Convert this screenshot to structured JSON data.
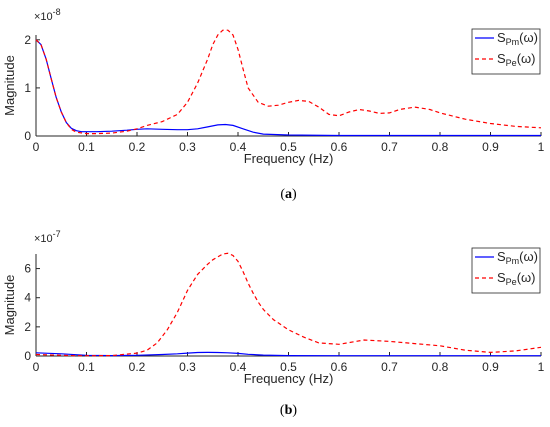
{
  "chart_data": [
    {
      "type": "line",
      "caption_letter": "a",
      "exponent": "-8",
      "xlabel": "Frequency (Hz)",
      "ylabel": "Magnitude",
      "xlim": [
        0,
        1
      ],
      "ylim": [
        0,
        2.1
      ],
      "xticks": [
        "0",
        "0.1",
        "0.2",
        "0.3",
        "0.4",
        "0.5",
        "0.6",
        "0.7",
        "0.8",
        "0.9",
        "1"
      ],
      "yticks": [
        "0",
        "1",
        "2"
      ],
      "legend_position": "top-right",
      "series": [
        {
          "name": "Pm",
          "color": "#0000ff",
          "style": "solid",
          "x": [
            0,
            0.01,
            0.02,
            0.03,
            0.04,
            0.05,
            0.06,
            0.07,
            0.08,
            0.09,
            0.1,
            0.12,
            0.15,
            0.18,
            0.2,
            0.22,
            0.25,
            0.28,
            0.3,
            0.32,
            0.34,
            0.36,
            0.375,
            0.39,
            0.41,
            0.43,
            0.45,
            0.5,
            0.6,
            0.7,
            0.8,
            0.9,
            1.0
          ],
          "y": [
            2.0,
            1.9,
            1.6,
            1.2,
            0.8,
            0.5,
            0.28,
            0.16,
            0.11,
            0.09,
            0.09,
            0.09,
            0.1,
            0.12,
            0.14,
            0.15,
            0.14,
            0.13,
            0.13,
            0.15,
            0.19,
            0.23,
            0.24,
            0.22,
            0.15,
            0.08,
            0.04,
            0.02,
            0.01,
            0.01,
            0.01,
            0.01,
            0.01
          ]
        },
        {
          "name": "Pe",
          "color": "#ff0000",
          "style": "dashed",
          "x": [
            0,
            0.01,
            0.02,
            0.03,
            0.04,
            0.05,
            0.06,
            0.07,
            0.08,
            0.1,
            0.12,
            0.15,
            0.18,
            0.2,
            0.22,
            0.25,
            0.28,
            0.3,
            0.32,
            0.34,
            0.35,
            0.36,
            0.37,
            0.38,
            0.39,
            0.4,
            0.41,
            0.42,
            0.44,
            0.46,
            0.48,
            0.5,
            0.52,
            0.54,
            0.56,
            0.58,
            0.6,
            0.62,
            0.64,
            0.66,
            0.68,
            0.7,
            0.72,
            0.75,
            0.78,
            0.8,
            0.85,
            0.9,
            0.95,
            1.0
          ],
          "y": [
            2.0,
            1.9,
            1.6,
            1.2,
            0.8,
            0.5,
            0.28,
            0.14,
            0.08,
            0.05,
            0.05,
            0.06,
            0.1,
            0.15,
            0.22,
            0.3,
            0.45,
            0.7,
            1.1,
            1.6,
            1.9,
            2.1,
            2.2,
            2.2,
            2.1,
            1.8,
            1.4,
            1.0,
            0.7,
            0.62,
            0.64,
            0.7,
            0.74,
            0.72,
            0.6,
            0.45,
            0.42,
            0.5,
            0.55,
            0.52,
            0.47,
            0.48,
            0.55,
            0.6,
            0.55,
            0.48,
            0.35,
            0.26,
            0.2,
            0.17
          ]
        }
      ]
    },
    {
      "type": "line",
      "caption_letter": "b",
      "exponent": "-7",
      "xlabel": "Frequency (Hz)",
      "ylabel": "Magnitude",
      "xlim": [
        0,
        1
      ],
      "ylim": [
        0,
        7
      ],
      "xticks": [
        "0",
        "0.1",
        "0.2",
        "0.3",
        "0.4",
        "0.5",
        "0.6",
        "0.7",
        "0.8",
        "0.9",
        "1"
      ],
      "yticks": [
        "0",
        "2",
        "4",
        "6"
      ],
      "legend_position": "top-right",
      "series": [
        {
          "name": "Pm",
          "color": "#0000ff",
          "style": "solid",
          "x": [
            0,
            0.05,
            0.1,
            0.15,
            0.2,
            0.25,
            0.28,
            0.3,
            0.32,
            0.34,
            0.36,
            0.38,
            0.4,
            0.42,
            0.45,
            0.5,
            0.6,
            0.7,
            0.8,
            0.9,
            1.0
          ],
          "y": [
            0.22,
            0.15,
            0.05,
            0.03,
            0.05,
            0.1,
            0.15,
            0.2,
            0.24,
            0.25,
            0.24,
            0.22,
            0.18,
            0.12,
            0.06,
            0.03,
            0.02,
            0.02,
            0.02,
            0.02,
            0.02
          ]
        },
        {
          "name": "Pe",
          "color": "#ff0000",
          "style": "dashed",
          "x": [
            0,
            0.02,
            0.05,
            0.08,
            0.1,
            0.15,
            0.2,
            0.22,
            0.24,
            0.26,
            0.28,
            0.3,
            0.32,
            0.34,
            0.35,
            0.36,
            0.37,
            0.38,
            0.39,
            0.4,
            0.41,
            0.42,
            0.43,
            0.44,
            0.45,
            0.47,
            0.5,
            0.53,
            0.56,
            0.6,
            0.65,
            0.7,
            0.75,
            0.8,
            0.85,
            0.9,
            0.95,
            1.0
          ],
          "y": [
            0.1,
            0.08,
            0.05,
            0.02,
            0.02,
            0.03,
            0.2,
            0.4,
            0.9,
            1.8,
            3.0,
            4.5,
            5.6,
            6.3,
            6.6,
            6.8,
            7.0,
            7.05,
            6.9,
            6.5,
            5.8,
            5.0,
            4.3,
            3.7,
            3.2,
            2.5,
            1.8,
            1.3,
            0.9,
            0.8,
            1.1,
            1.0,
            0.85,
            0.7,
            0.4,
            0.25,
            0.35,
            0.6
          ]
        }
      ]
    }
  ]
}
